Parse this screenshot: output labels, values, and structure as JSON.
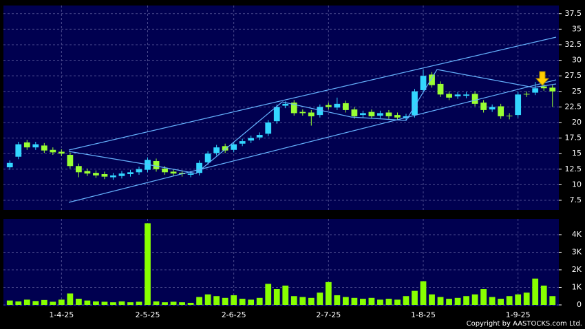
{
  "chart_data": [
    {
      "type": "candlestick",
      "categories": [
        null,
        null,
        null,
        null,
        null,
        null,
        "1-4-25",
        null,
        null,
        null,
        null,
        null,
        null,
        null,
        null,
        null,
        "2-5-25",
        null,
        null,
        null,
        null,
        null,
        null,
        null,
        null,
        null,
        "2-6-25",
        null,
        null,
        null,
        null,
        null,
        null,
        null,
        null,
        null,
        null,
        "2-7-25",
        null,
        null,
        null,
        null,
        null,
        null,
        null,
        null,
        null,
        null,
        "1-8-25",
        null,
        null,
        null,
        null,
        null,
        null,
        null,
        null,
        null,
        null,
        "1-9-25",
        null,
        null,
        null,
        null
      ],
      "open": [
        12.8,
        14.5,
        16.8,
        16,
        16.3,
        15.6,
        15.3,
        14.8,
        13,
        12.2,
        11.9,
        11.7,
        11.2,
        11.4,
        11.7,
        12,
        12.4,
        13.8,
        12.6,
        12.1,
        11.9,
        11.6,
        11.9,
        13.6,
        15.1,
        16.2,
        15.6,
        16.6,
        17.1,
        17.6,
        18.2,
        20.2,
        22.7,
        23.2,
        21.7,
        21.6,
        21.2,
        22.8,
        22.4,
        23.1,
        22.1,
        21.2,
        21.7,
        21.1,
        21.6,
        21.2,
        20.7,
        21.2,
        25.2,
        27.7,
        26.2,
        24.6,
        24.2,
        24.3,
        24.6,
        23.2,
        22.1,
        22.6,
        21.1,
        21.2,
        24.6,
        24.8,
        25.8,
        25.6
      ],
      "high": [
        13.9,
        16.9,
        17.2,
        16.9,
        16.7,
        16.0,
        15.7,
        15.2,
        13.4,
        12.6,
        12.3,
        12.1,
        11.9,
        12.2,
        12.4,
        12.9,
        14.4,
        14.2,
        13.0,
        12.5,
        12.3,
        12.2,
        13.9,
        15.4,
        16.4,
        16.6,
        16.9,
        17.4,
        17.9,
        18.4,
        20.4,
        22.9,
        23.4,
        23.6,
        22.1,
        22.0,
        22.9,
        23.2,
        24.0,
        23.5,
        22.5,
        21.9,
        22.1,
        21.9,
        22.0,
        21.6,
        21.4,
        25.4,
        28.5,
        28.1,
        26.6,
        25.0,
        24.9,
        24.9,
        25.0,
        23.6,
        22.9,
        23.0,
        21.5,
        25.0,
        25.0,
        26.5,
        26.2,
        26.0
      ],
      "low": [
        12.4,
        14.1,
        15.6,
        15.6,
        15.1,
        14.8,
        14.6,
        12.6,
        11.2,
        11.4,
        11.1,
        10.9,
        10.8,
        11.0,
        11.3,
        11.6,
        12.0,
        12.1,
        11.6,
        11.4,
        11.3,
        11.2,
        11.5,
        13.2,
        14.7,
        15.1,
        15.2,
        16.2,
        16.7,
        17.2,
        17.8,
        19.8,
        22.3,
        21.1,
        21.1,
        19.5,
        20.8,
        22.1,
        22.0,
        21.6,
        20.6,
        20.8,
        20.6,
        20.7,
        20.6,
        20.4,
        20.3,
        20.8,
        24.8,
        25.6,
        24.1,
        23.6,
        23.8,
        23.9,
        22.6,
        21.6,
        21.7,
        20.6,
        20.5,
        20.8,
        24.1,
        24.4,
        25.1,
        22.5
      ],
      "close": [
        13.5,
        16.5,
        16,
        16.5,
        15.5,
        15.2,
        15,
        13,
        12,
        11.8,
        11.5,
        11.3,
        11.5,
        11.8,
        12,
        12.5,
        14,
        12.5,
        12,
        11.8,
        11.7,
        11.8,
        13.5,
        15,
        16,
        15.5,
        16.5,
        17,
        17.5,
        18,
        20,
        22.5,
        23,
        21.5,
        21.5,
        21,
        22.5,
        22.5,
        23,
        22,
        21,
        21.5,
        21,
        21.5,
        21,
        20.8,
        21,
        25,
        27.5,
        26,
        24.5,
        24,
        24.5,
        24.5,
        23,
        22,
        22.5,
        21,
        21,
        24.5,
        24.5,
        25.5,
        25.5,
        25
      ],
      "up_color": "#33d6ff",
      "down_color": "#99ff33",
      "ylim": [
        5.95,
        38.8
      ],
      "yticks": [
        7.5,
        10,
        12.5,
        15,
        17.5,
        20,
        22.5,
        25,
        27.5,
        30,
        32.5,
        35,
        37.5
      ],
      "grid": true
    },
    {
      "type": "bar",
      "values": [
        250,
        200,
        300,
        220,
        280,
        180,
        300,
        650,
        350,
        250,
        200,
        180,
        150,
        200,
        150,
        180,
        4650,
        200,
        150,
        180,
        150,
        120,
        450,
        600,
        500,
        400,
        550,
        350,
        300,
        400,
        1200,
        900,
        1100,
        500,
        450,
        400,
        700,
        1300,
        550,
        450,
        400,
        350,
        400,
        300,
        350,
        300,
        500,
        800,
        1350,
        600,
        450,
        350,
        400,
        500,
        600,
        900,
        450,
        350,
        500,
        600,
        700,
        1500,
        1100,
        500
      ],
      "color": "#88ff00",
      "ylim": [
        0,
        4900
      ],
      "yticks": [
        0,
        {
          "value": 1000,
          "label": "1K"
        },
        {
          "value": 2000,
          "label": "2K"
        },
        {
          "value": 3000,
          "label": "3K"
        },
        {
          "value": 4000,
          "label": "4K"
        }
      ],
      "grid": true
    }
  ],
  "copyright": "Copyright by AASTOCKS.com Ltd."
}
